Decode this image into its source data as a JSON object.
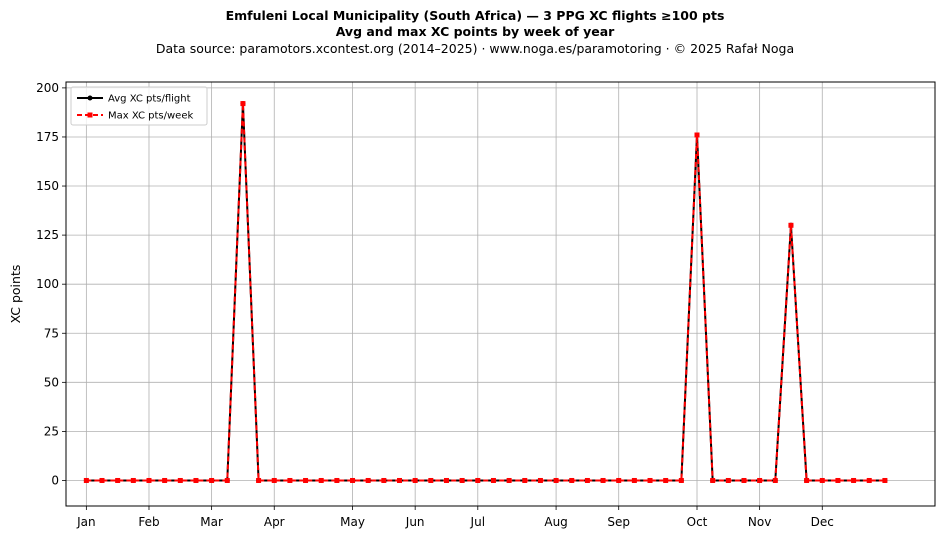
{
  "chart_data": {
    "type": "line",
    "title": "Emfuleni Local Municipality (South Africa)  —  3 PPG XC flights ≥100 pts",
    "title2": "Avg and max XC points by week of year",
    "subtitle": "Data source: paramotors.xcontest.org (2014–2025)  ·  www.noga.es/paramotoring  ·  © 2025 Rafał Noga",
    "xlabel": "",
    "ylabel": "XC points",
    "ylim": [
      -13,
      203
    ],
    "xlim": [
      -1.3,
      54.2
    ],
    "yticks": [
      0,
      25,
      50,
      75,
      100,
      125,
      150,
      175,
      200
    ],
    "month_ticks": [
      {
        "label": "Jan",
        "week": 0
      },
      {
        "label": "Feb",
        "week": 4
      },
      {
        "label": "Mar",
        "week": 8
      },
      {
        "label": "Apr",
        "week": 12
      },
      {
        "label": "May",
        "week": 17
      },
      {
        "label": "Jun",
        "week": 21
      },
      {
        "label": "Jul",
        "week": 25
      },
      {
        "label": "Aug",
        "week": 30
      },
      {
        "label": "Sep",
        "week": 34
      },
      {
        "label": "Oct",
        "week": 39
      },
      {
        "label": "Nov",
        "week": 43
      },
      {
        "label": "Dec",
        "week": 47
      }
    ],
    "x": [
      0,
      1,
      2,
      3,
      4,
      5,
      6,
      7,
      8,
      9,
      10,
      11,
      12,
      13,
      14,
      15,
      16,
      17,
      18,
      19,
      20,
      21,
      22,
      23,
      24,
      25,
      26,
      27,
      28,
      29,
      30,
      31,
      32,
      33,
      34,
      35,
      36,
      37,
      38,
      39,
      40,
      41,
      42,
      43,
      44,
      45,
      46,
      47,
      48,
      49,
      50,
      51
    ],
    "series": [
      {
        "name": "Avg XC pts/flight",
        "color": "#000000",
        "style": "solid",
        "marker": "circle",
        "values": [
          0,
          0,
          0,
          0,
          0,
          0,
          0,
          0,
          0,
          0,
          192,
          0,
          0,
          0,
          0,
          0,
          0,
          0,
          0,
          0,
          0,
          0,
          0,
          0,
          0,
          0,
          0,
          0,
          0,
          0,
          0,
          0,
          0,
          0,
          0,
          0,
          0,
          0,
          0,
          176,
          0,
          0,
          0,
          0,
          0,
          130,
          0,
          0,
          0,
          0,
          0,
          0
        ]
      },
      {
        "name": "Max XC pts/week",
        "color": "#ff0000",
        "style": "dashed",
        "marker": "square",
        "values": [
          0,
          0,
          0,
          0,
          0,
          0,
          0,
          0,
          0,
          0,
          192,
          0,
          0,
          0,
          0,
          0,
          0,
          0,
          0,
          0,
          0,
          0,
          0,
          0,
          0,
          0,
          0,
          0,
          0,
          0,
          0,
          0,
          0,
          0,
          0,
          0,
          0,
          0,
          0,
          176,
          0,
          0,
          0,
          0,
          0,
          130,
          0,
          0,
          0,
          0,
          0,
          0
        ]
      }
    ],
    "grid": true,
    "legend_position": "top-left"
  }
}
